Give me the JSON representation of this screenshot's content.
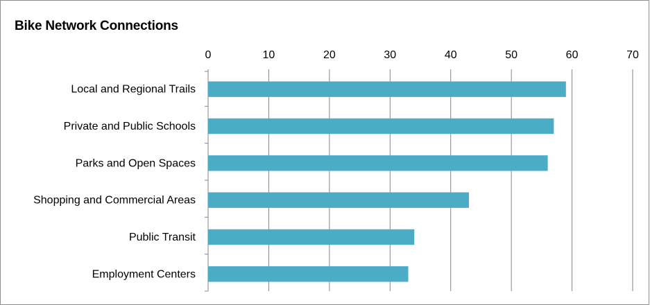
{
  "chart_data": {
    "type": "bar",
    "orientation": "horizontal",
    "title": "Bike Network Connections",
    "categories": [
      "Local and Regional Trails",
      "Private and Public Schools",
      "Parks and Open Spaces",
      "Shopping and Commercial Areas",
      "Public Transit",
      "Employment Centers"
    ],
    "values": [
      59,
      57,
      56,
      43,
      34,
      33
    ],
    "xlim": [
      0,
      70
    ],
    "x_ticks": [
      0,
      10,
      20,
      30,
      40,
      50,
      60,
      70
    ],
    "x_axis_position": "top",
    "grid": true,
    "legend": "none",
    "bar_color": "#4bacc6"
  }
}
